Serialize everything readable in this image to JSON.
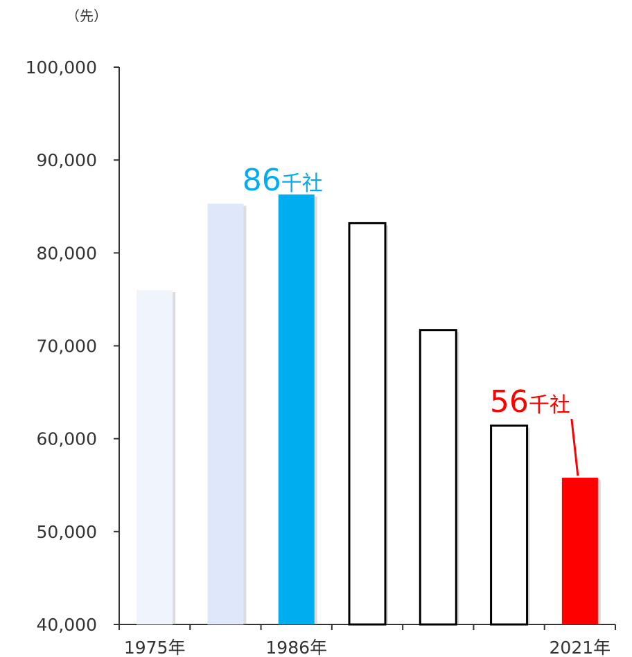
{
  "chart_data": {
    "type": "bar",
    "unit_label": "（先）",
    "categories": [
      "1975年",
      "",
      "1986年",
      "",
      "",
      "",
      "2021年"
    ],
    "values": [
      76000,
      85300,
      86300,
      83200,
      71700,
      61400,
      55800
    ],
    "ylim": [
      40000,
      100000
    ],
    "yticks": [
      "40,000",
      "50,000",
      "60,000",
      "70,000",
      "80,000",
      "90,000",
      "100,000"
    ],
    "bar_styles": [
      {
        "fill": "#f0f4fc",
        "stroke": "none"
      },
      {
        "fill": "#dfe8fb",
        "stroke": "none"
      },
      {
        "fill": "#00aeef",
        "stroke": "none"
      },
      {
        "fill": "#ffffff",
        "stroke": "#000000"
      },
      {
        "fill": "#ffffff",
        "stroke": "#000000"
      },
      {
        "fill": "#ffffff",
        "stroke": "#000000"
      },
      {
        "fill": "#ff0000",
        "stroke": "none"
      }
    ],
    "annotations": [
      {
        "bar": 2,
        "number": "86",
        "suffix": "千社",
        "color": "#00aeef"
      },
      {
        "bar": 6,
        "number": "56",
        "suffix": "千社",
        "color": "#ff0000"
      }
    ],
    "grid": false,
    "legend": "none"
  }
}
